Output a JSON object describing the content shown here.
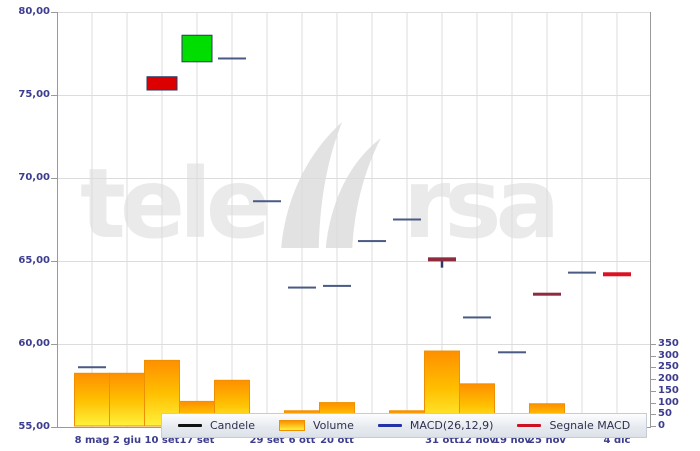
{
  "watermark": {
    "text": "teleborsa",
    "left": "tele",
    "right": "rsa"
  },
  "legend": {
    "items": [
      {
        "key": "candele",
        "label": "Candele",
        "swatch": "line",
        "color": "#111111"
      },
      {
        "key": "volume",
        "label": "Volume",
        "swatch": "box",
        "color": "#ff9000"
      },
      {
        "key": "macd",
        "label": "MACD(26,12,9)",
        "swatch": "line",
        "color": "#2233aa"
      },
      {
        "key": "segnale-macd",
        "label": "Segnale MACD",
        "swatch": "line",
        "color": "#cc1122"
      }
    ]
  },
  "colors": {
    "grid": "#dcdcdc",
    "axis": "#9a9a9a",
    "axis_text": "#3d3d8f",
    "candle_up": "#00dd00",
    "candle_down": "#dd0000",
    "candle_border": "#2b3a66",
    "macd_dash": "#4a5a85",
    "signal_red": "#dd1122",
    "signal_dark_red": "#8e2b3e",
    "volume_top": "#ff8f00",
    "volume_mid": "#ffbf00",
    "volume_bottom": "#fff23c",
    "volume_border": "#ef9000",
    "watermark": "#eaeaea"
  },
  "chart_data": {
    "type": "candlestick",
    "title": "",
    "grid": true,
    "legend_position": "bottom",
    "price_axis": {
      "side": "left",
      "min": 55,
      "max": 80,
      "tick_step": 5,
      "ticks": [
        {
          "value": 80,
          "label": "80,00"
        },
        {
          "value": 75,
          "label": "75,00"
        },
        {
          "value": 70,
          "label": "70,00"
        },
        {
          "value": 65,
          "label": "65,00"
        },
        {
          "value": 60,
          "label": "60,00"
        },
        {
          "value": 55,
          "label": "55,00"
        }
      ]
    },
    "volume_axis": {
      "side": "right",
      "min": 0,
      "max": 350,
      "tick_step": 50,
      "ticks": [
        {
          "value": 350,
          "label": "350"
        },
        {
          "value": 300,
          "label": "300"
        },
        {
          "value": 250,
          "label": "250"
        },
        {
          "value": 200,
          "label": "200"
        },
        {
          "value": 150,
          "label": "150"
        },
        {
          "value": 100,
          "label": "100"
        },
        {
          "value": 50,
          "label": "50"
        },
        {
          "value": 0,
          "label": "0"
        }
      ]
    },
    "x_axis": {
      "slots": 16,
      "labels": [
        {
          "slot": 1,
          "text": "8 mag"
        },
        {
          "slot": 2,
          "text": "2 giu"
        },
        {
          "slot": 3,
          "text": "10 set"
        },
        {
          "slot": 4,
          "text": "17 set"
        },
        {
          "slot": 6,
          "text": "29 set"
        },
        {
          "slot": 7,
          "text": "6 ott"
        },
        {
          "slot": 8,
          "text": "20 ott"
        },
        {
          "slot": 11,
          "text": "31 ott"
        },
        {
          "slot": 12,
          "text": "12 nov"
        },
        {
          "slot": 13,
          "text": "19 nov"
        },
        {
          "slot": 14,
          "text": "25 nov"
        },
        {
          "slot": 16,
          "text": "4 dic"
        }
      ]
    },
    "volume_bars": [
      {
        "slot": 1,
        "value": 225
      },
      {
        "slot": 2,
        "value": 225
      },
      {
        "slot": 3,
        "value": 280
      },
      {
        "slot": 4,
        "value": 105
      },
      {
        "slot": 5,
        "value": 195
      },
      {
        "slot": 7,
        "value": 65
      },
      {
        "slot": 8,
        "value": 100
      },
      {
        "slot": 10,
        "value": 65
      },
      {
        "slot": 11,
        "value": 320
      },
      {
        "slot": 12,
        "value": 180
      },
      {
        "slot": 14,
        "value": 95
      },
      {
        "slot": 15,
        "value": 15
      },
      {
        "slot": 16,
        "value": 40
      }
    ],
    "price_marks": [
      {
        "slot": 1,
        "type": "dash",
        "price": 58.6,
        "series": "macd",
        "thickness": 2
      },
      {
        "slot": 3,
        "type": "candle",
        "open": 76.1,
        "close": 75.3,
        "direction": "down"
      },
      {
        "slot": 4,
        "type": "candle",
        "open": 77.0,
        "close": 78.6,
        "direction": "up"
      },
      {
        "slot": 5,
        "type": "dash",
        "price": 77.2,
        "series": "macd",
        "thickness": 2
      },
      {
        "slot": 6,
        "type": "dash",
        "price": 68.6,
        "series": "macd",
        "thickness": 2
      },
      {
        "slot": 7,
        "type": "dash",
        "price": 63.4,
        "series": "macd",
        "thickness": 2
      },
      {
        "slot": 8,
        "type": "dash",
        "price": 63.5,
        "series": "macd",
        "thickness": 2
      },
      {
        "slot": 9,
        "type": "dash",
        "price": 66.2,
        "series": "macd",
        "thickness": 2
      },
      {
        "slot": 10,
        "type": "dash",
        "price": 67.5,
        "series": "macd",
        "thickness": 2
      },
      {
        "slot": 11,
        "type": "dash",
        "price": 65.1,
        "low": 64.6,
        "series": "signal-dark",
        "thickness": 4
      },
      {
        "slot": 12,
        "type": "dash",
        "price": 61.6,
        "series": "macd",
        "thickness": 2
      },
      {
        "slot": 13,
        "type": "dash",
        "price": 59.5,
        "series": "macd",
        "thickness": 2
      },
      {
        "slot": 14,
        "type": "dash",
        "price": 63.0,
        "series": "signal-dark",
        "thickness": 3
      },
      {
        "slot": 15,
        "type": "dash",
        "price": 64.3,
        "series": "macd",
        "thickness": 2
      },
      {
        "slot": 16,
        "type": "dash",
        "price": 64.2,
        "series": "signal",
        "thickness": 4
      }
    ]
  }
}
